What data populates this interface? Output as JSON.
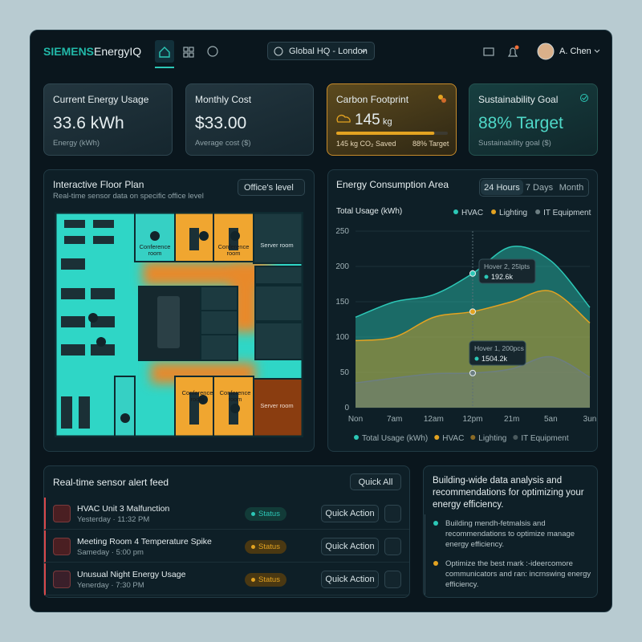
{
  "header": {
    "brand": "SIEMENS",
    "product": "EnergyIQ",
    "location": "Global HQ - London",
    "user": "A. Chen"
  },
  "cards": [
    {
      "title": "Current Energy Usage",
      "value": "33.6 kWh",
      "caption": "Energy (kWh)"
    },
    {
      "title": "Monthly Cost",
      "value": "$33.00",
      "caption": "Average cost ($)"
    },
    {
      "title": "Carbon Footprint",
      "value": "145",
      "unit": "kg",
      "caption": "145 kg CO₂ Saved",
      "target": "88% Target",
      "progress": 88
    },
    {
      "title": "Sustainability Goal",
      "value": "88% Target",
      "caption": "Sustainability goal ($)"
    }
  ],
  "floor_plan": {
    "title": "Interactive Floor Plan",
    "subtitle": "Real-time sensor data on specific office level",
    "level": "Office's level",
    "rooms": [
      "Conference room",
      "Conference room",
      "Server room",
      "Conference room",
      "Conference room",
      "Server room"
    ]
  },
  "chart_data": {
    "type": "area",
    "title": "Energy Consumption Area",
    "tabs": [
      "24 Hours",
      "7 Days",
      "Month"
    ],
    "y_label": "Total Usage (kWh)",
    "categories": [
      "Non",
      "7am",
      "12am",
      "12pm",
      "21m",
      "5an",
      "3un"
    ],
    "series": [
      {
        "name": "HVAC",
        "color": "#2cc7b6",
        "values": [
          128,
          150,
          160,
          190,
          228,
          208,
          142
        ]
      },
      {
        "name": "Lighting",
        "color": "#e3a321",
        "values": [
          95,
          100,
          128,
          136,
          150,
          165,
          120
        ]
      },
      {
        "name": "IT Equipment",
        "color": "#6c7e82",
        "values": [
          35,
          42,
          48,
          49,
          55,
          72,
          43
        ]
      }
    ],
    "ylim": [
      0,
      250
    ],
    "yticks": [
      0,
      50,
      100,
      150,
      200,
      250
    ],
    "grid": true,
    "legend_bottom": [
      {
        "name": "Total Usage (kWh)",
        "color": "#2cc7b6"
      },
      {
        "name": "HVAC",
        "color": "#e3a321"
      },
      {
        "name": "Lighting",
        "color": "#8a6a25"
      },
      {
        "name": "IT Equipment",
        "color": "#4b5a5e"
      }
    ],
    "tooltips": [
      {
        "title": "Hover 2, 25lpts",
        "value": "192.6k"
      },
      {
        "title": "Hover 1, 200pcs",
        "value": "1504.2k"
      }
    ]
  },
  "alerts": {
    "title": "Real-time sensor alert feed",
    "filter": "Quick All",
    "items": [
      {
        "title": "HVAC Unit 3 Malfunction",
        "time": "Yesterday · 11:32 PM",
        "status": "Status",
        "action": "Quick Action"
      },
      {
        "title": "Meeting Room 4 Temperature Spike",
        "time": "Sameday · 5:00 pm",
        "status": "Status",
        "action": "Quick Action"
      },
      {
        "title": "Unusual Night Energy Usage",
        "time": "Yenerday · 7:30 PM",
        "status": "Status",
        "action": "Quick Action"
      }
    ]
  },
  "insights": {
    "heading": "Building-wide data analysis and recommendations for optimizing your energy efficiency.",
    "items": [
      "Building mendh-fetmalsis and recommendations to optimize manage energy efficiency.",
      "Optimize the best mark :-ideercomore communicators and ran: incrnswing energy efficiency."
    ]
  }
}
